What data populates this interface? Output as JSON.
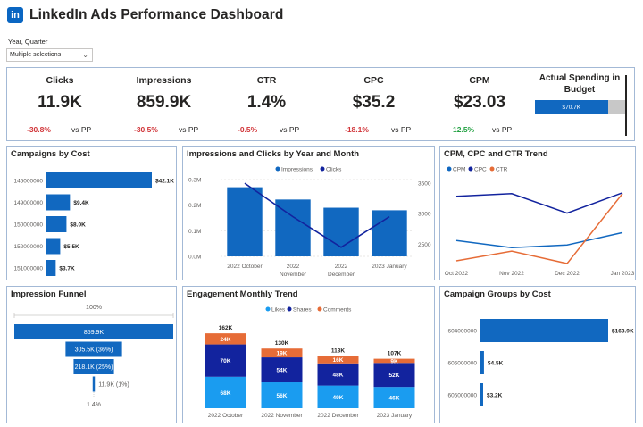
{
  "header": {
    "logo": "in",
    "title": "LinkedIn Ads Performance Dashboard"
  },
  "slicer": {
    "label": "Year, Quarter",
    "value": "Multiple selections"
  },
  "kpis": [
    {
      "label": "Clicks",
      "value": "11.9K",
      "change": "-30.8%",
      "vs": "vs PP",
      "direction": "negative"
    },
    {
      "label": "Impressions",
      "value": "859.9K",
      "change": "-30.5%",
      "vs": "vs PP",
      "direction": "negative"
    },
    {
      "label": "CTR",
      "value": "1.4%",
      "change": "-0.5%",
      "vs": "vs PP",
      "direction": "negative"
    },
    {
      "label": "CPC",
      "value": "$35.2",
      "change": "-18.1%",
      "vs": "vs PP",
      "direction": "negative"
    },
    {
      "label": "CPM",
      "value": "$23.03",
      "change": "12.5%",
      "vs": "vs PP",
      "direction": "positive"
    }
  ],
  "budget": {
    "label": "Actual Spending in Budget",
    "value_label": "$70.7K",
    "fill_fraction": 0.8
  },
  "colors": {
    "primary": "#1168c0",
    "navy": "#12239e",
    "orange": "#e66c37",
    "light_blue": "#1a9cf0",
    "border": "#a3b9d6",
    "negative": "#d13438",
    "positive": "#20a040"
  },
  "chart_data": [
    {
      "id": "campaigns_by_cost",
      "type": "bar",
      "orientation": "horizontal",
      "title": "Campaigns by Cost",
      "categories": [
        "146000000",
        "149000000",
        "150000000",
        "152000000",
        "151000000"
      ],
      "values": [
        42100,
        9400,
        8000,
        5500,
        3700
      ],
      "data_labels": [
        "$42.1K",
        "$9.4K",
        "$8.0K",
        "$5.5K",
        "$3.7K"
      ]
    },
    {
      "id": "impressions_clicks",
      "type": "bar",
      "title": "Impressions and Clicks by Year and Month",
      "categories": [
        "2022 October",
        "2022 November",
        "2022 December",
        "2023 January"
      ],
      "legend": [
        "Impressions",
        "Clicks"
      ],
      "series": [
        {
          "name": "Impressions",
          "kind": "bar",
          "values": [
            270000,
            222000,
            190000,
            180000
          ]
        },
        {
          "name": "Clicks",
          "kind": "line",
          "values": [
            3500,
            2950,
            2450,
            2950
          ]
        }
      ],
      "y_ticks": [
        "0.0M",
        "0.1M",
        "0.2M",
        "0.3M"
      ],
      "y2_ticks": [
        "2500",
        "3000",
        "3500"
      ],
      "ylim": [
        0,
        300000
      ],
      "y2lim": [
        2300,
        3560
      ]
    },
    {
      "id": "cpm_cpc_ctr_trend",
      "type": "line",
      "title": "CPM, CPC and CTR Trend",
      "categories": [
        "Oct 2022",
        "Nov 2022",
        "Dec 2022",
        "Jan 2023"
      ],
      "legend": [
        "CPM",
        "CPC",
        "CTR"
      ],
      "series": [
        {
          "name": "CPM",
          "values": [
            0.28,
            0.2,
            0.23,
            0.37
          ]
        },
        {
          "name": "CPC",
          "values": [
            0.78,
            0.81,
            0.59,
            0.82
          ]
        },
        {
          "name": "CTR",
          "values": [
            0.05,
            0.16,
            0.02,
            0.81
          ]
        }
      ]
    },
    {
      "id": "impression_funnel",
      "type": "bar",
      "title": "Impression Funnel",
      "top_label": "100%",
      "bottom_label": "1.4%",
      "values": [
        859900,
        305500,
        218100,
        11900
      ],
      "data_labels": [
        "859.9K",
        "305.5K (36%)",
        "218.1K (25%)",
        "11.9K (1%)"
      ]
    },
    {
      "id": "engagement_trend",
      "type": "bar",
      "stacked": true,
      "title": "Engagement Monthly Trend",
      "categories": [
        "2022 October",
        "2022 November",
        "2022 December",
        "2023 January"
      ],
      "legend": [
        "Likes",
        "Shares",
        "Comments"
      ],
      "series": [
        {
          "name": "Likes",
          "values": [
            68000,
            56000,
            49000,
            46000
          ],
          "labels": [
            "68K",
            "56K",
            "49K",
            "46K"
          ]
        },
        {
          "name": "Shares",
          "values": [
            70000,
            54000,
            48000,
            52000
          ],
          "labels": [
            "70K",
            "54K",
            "48K",
            "52K"
          ]
        },
        {
          "name": "Comments",
          "values": [
            24000,
            19000,
            16000,
            9000
          ],
          "labels": [
            "24K",
            "19K",
            "16K",
            "9K"
          ]
        }
      ],
      "totals": [
        "162K",
        "130K",
        "113K",
        "107K"
      ],
      "ylim": [
        0,
        170000
      ]
    },
    {
      "id": "campaign_groups_by_cost",
      "type": "bar",
      "orientation": "horizontal",
      "title": "Campaign Groups by Cost",
      "categories": [
        "604000000",
        "606000000",
        "605000000"
      ],
      "values": [
        163900,
        4500,
        3200
      ],
      "data_labels": [
        "$163.9K",
        "$4.5K",
        "$3.2K"
      ]
    }
  ]
}
